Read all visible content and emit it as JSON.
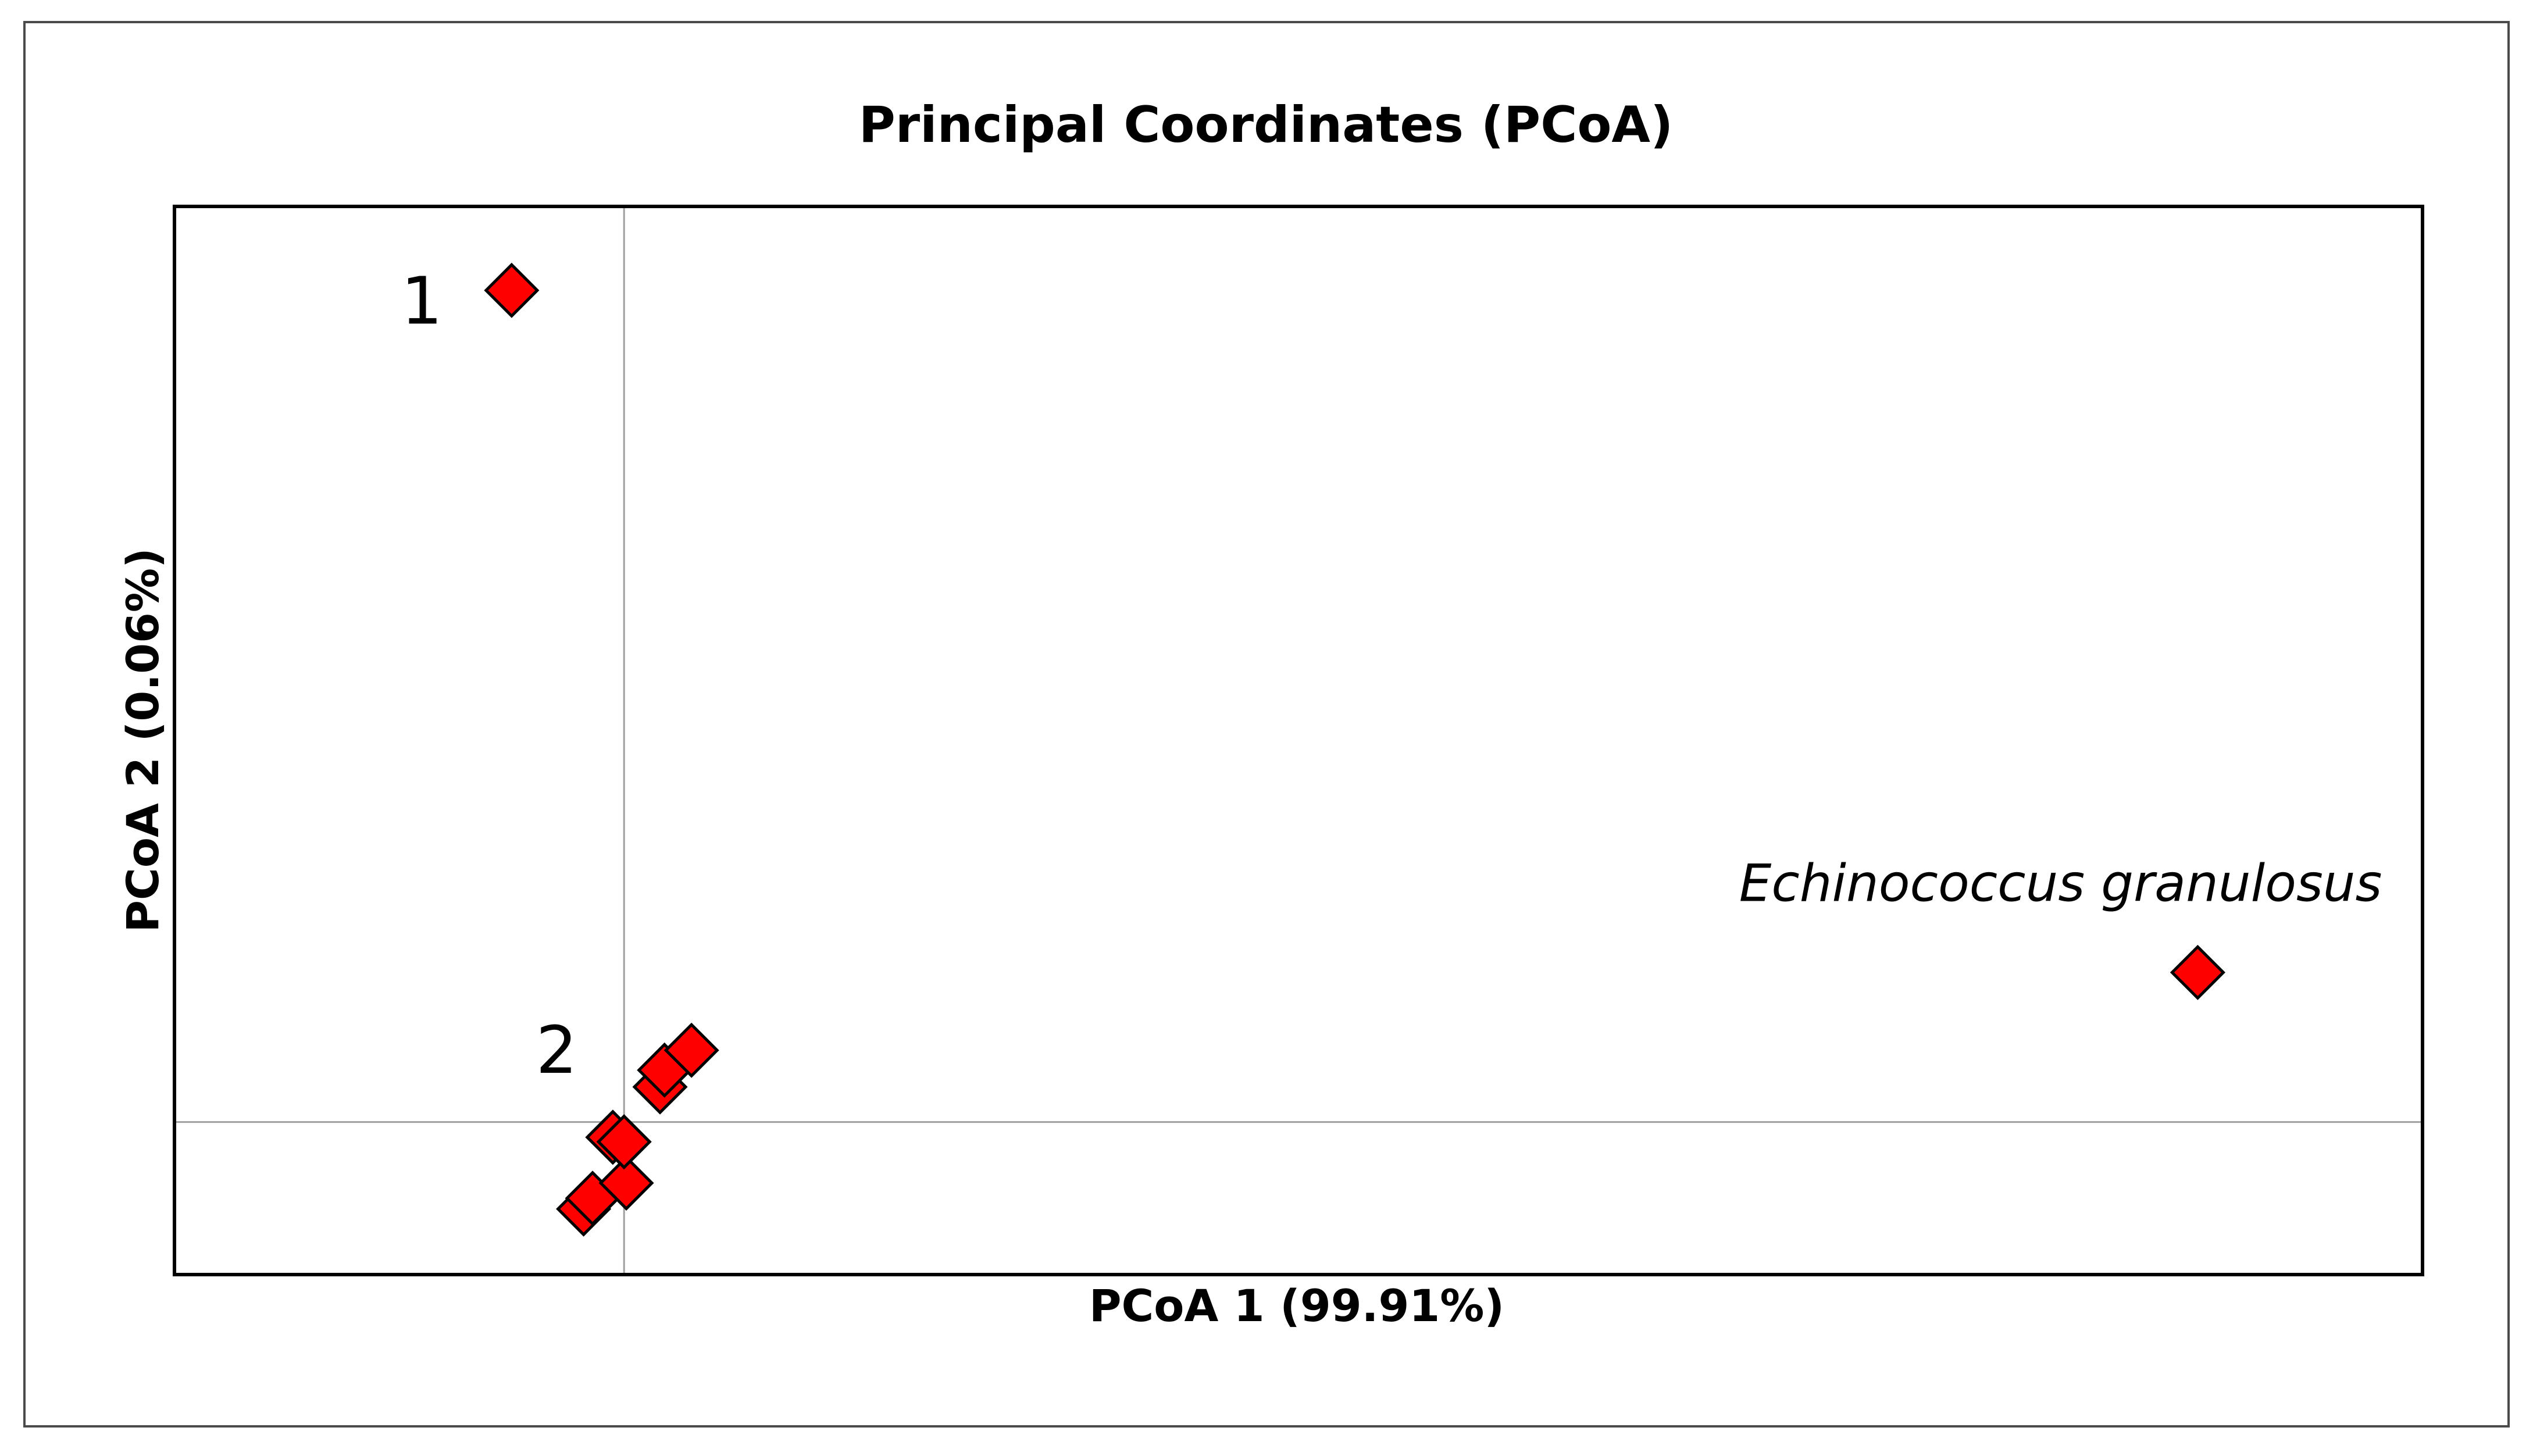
{
  "chart_data": {
    "type": "scatter",
    "title": "Principal Coordinates (PCoA)",
    "xlabel": "PCoA 1 (99.91%)",
    "ylabel": "PCoA 2 (0.06%)",
    "xlim": [
      -0.2,
      0.8
    ],
    "ylim": [
      -0.1,
      0.6
    ],
    "grid": false,
    "zero_lines": true,
    "marker": "diamond",
    "marker_color": "#ff0000",
    "series": [
      {
        "points": [
          {
            "x": -0.05,
            "y": 0.545
          },
          {
            "x": -0.018,
            "y": -0.057
          },
          {
            "x": -0.014,
            "y": -0.05
          },
          {
            "x": 0.001,
            "y": -0.04
          },
          {
            "x": -0.005,
            "y": -0.01
          },
          {
            "x": 0.0,
            "y": -0.013
          },
          {
            "x": 0.016,
            "y": 0.023
          },
          {
            "x": 0.018,
            "y": 0.034
          },
          {
            "x": 0.03,
            "y": 0.047
          },
          {
            "x": 0.7,
            "y": 0.098
          }
        ]
      }
    ],
    "annotations": [
      {
        "text": "1",
        "x": -0.09,
        "y": 0.535,
        "style": "normal"
      },
      {
        "text": "2",
        "x": -0.03,
        "y": 0.044,
        "style": "normal"
      },
      {
        "text": "Echinococcus granulosus",
        "x": 0.639,
        "y": 0.154,
        "style": "italic"
      }
    ]
  }
}
